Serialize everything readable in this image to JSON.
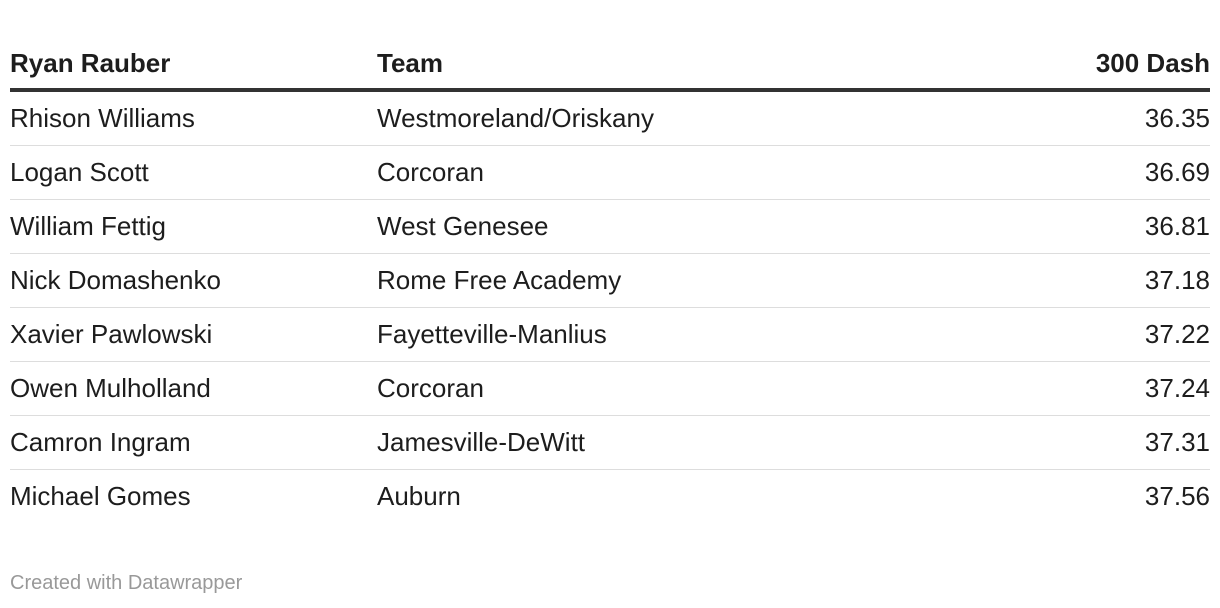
{
  "table": {
    "header": [
      "Ryan Rauber",
      "Team",
      "300 Dash"
    ],
    "rows": [
      [
        "Rhison Williams",
        "Westmoreland/Oriskany",
        "36.35"
      ],
      [
        "Logan Scott",
        "Corcoran",
        "36.69"
      ],
      [
        "William Fettig",
        "West Genesee",
        "36.81"
      ],
      [
        "Nick Domashenko",
        "Rome Free Academy",
        "37.18"
      ],
      [
        "Xavier Pawlowski",
        "Fayetteville-Manlius",
        "37.22"
      ],
      [
        "Owen Mulholland",
        "Corcoran",
        "37.24"
      ],
      [
        "Camron Ingram",
        "Jamesville-DeWitt",
        "37.31"
      ],
      [
        "Michael Gomes",
        "Auburn",
        "37.56"
      ]
    ]
  },
  "footer": "Created with Datawrapper"
}
